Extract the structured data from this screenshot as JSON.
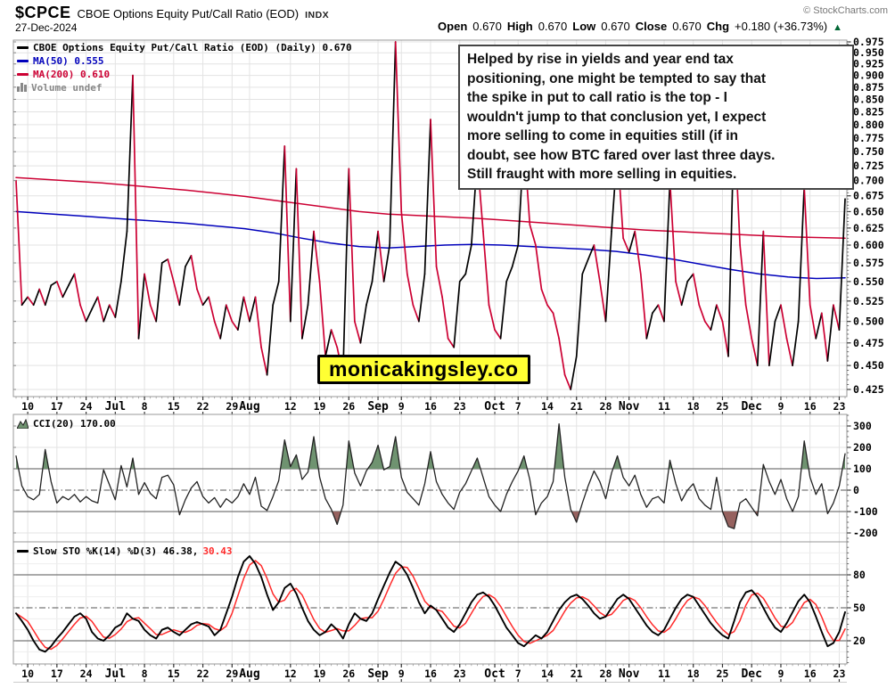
{
  "header": {
    "symbol": "$CPCE",
    "title": "CBOE Options Equity Put/Call Ratio (EOD)",
    "exchange": "INDX",
    "date": "27-Dec-2024",
    "copyright": "© StockCharts.com",
    "ohlc": {
      "open_label": "Open",
      "open": "0.670",
      "high_label": "High",
      "high": "0.670",
      "low_label": "Low",
      "low": "0.670",
      "close_label": "Close",
      "close": "0.670",
      "chg_label": "Chg",
      "chg": "+0.180 (+36.73%)",
      "chg_arrow": "▲",
      "chg_color": "#006633"
    }
  },
  "legends": {
    "main_price": "CBOE Options Equity Put/Call Ratio (EOD) (Daily) 0.670",
    "ma50": "MA(50) 0.555",
    "ma200": "MA(200) 0.610",
    "volume": "Volume undef",
    "cci": "CCI(20) 170.00",
    "sto_k": "Slow STO %K(14) %D(3) 46.38,",
    "sto_d": "30.43"
  },
  "annotation": {
    "text": "Helped by rise in yields and year end tax\npositioning, one might be tempted to say that\nthe spike in put to call ratio is the top - I\nwouldn't jump to that conclusion yet, I expect\nmore selling to come in equities still (if in\ndoubt, see how BTC fared over last three days.\nStill fraught with more selling in equities."
  },
  "watermark": {
    "text": "monicakingsley.co"
  },
  "colors": {
    "price_up": "#000000",
    "price_down": "#cc0033",
    "ma50": "#0000bb",
    "ma200": "#cc0033",
    "cci_line": "#222222",
    "cci_overbought_fill": "#6f9370",
    "cci_oversold_fill": "#96625f",
    "sto_k": "#000000",
    "sto_d": "#ff2a2a",
    "grid": "#e3e3e3",
    "panel_border": "#999999",
    "level_line": "#777777",
    "dashdot": "#555555",
    "axis_text": "#000000",
    "tick": "#555555",
    "watermark_bg": "#ffff33",
    "legend_volume": "#888888"
  },
  "chart_data": [
    {
      "type": "line",
      "panel": "price",
      "title": "CBOE Options Equity Put/Call Ratio (EOD) (Daily)",
      "scale": "log",
      "last_value": 0.67,
      "ylim": [
        0.4216,
        0.979
      ],
      "y_ticks": [
        0.975,
        0.95,
        0.925,
        0.9,
        0.875,
        0.85,
        0.825,
        0.8,
        0.775,
        0.75,
        0.725,
        0.7,
        0.675,
        0.65,
        0.625,
        0.6,
        0.575,
        0.55,
        0.525,
        0.5,
        0.475,
        0.45,
        0.425
      ],
      "x_tick_labels": [
        {
          "i": 2,
          "label": "10"
        },
        {
          "i": 7,
          "label": "17"
        },
        {
          "i": 12,
          "label": "24"
        },
        {
          "i": 17,
          "label": "Jul",
          "month": true
        },
        {
          "i": 22,
          "label": "8"
        },
        {
          "i": 27,
          "label": "15"
        },
        {
          "i": 32,
          "label": "22"
        },
        {
          "i": 37,
          "label": "29"
        },
        {
          "i": 40,
          "label": "Aug",
          "month": true
        },
        {
          "i": 47,
          "label": "12"
        },
        {
          "i": 52,
          "label": "19"
        },
        {
          "i": 57,
          "label": "26"
        },
        {
          "i": 62,
          "label": "Sep",
          "month": true
        },
        {
          "i": 66,
          "label": "9"
        },
        {
          "i": 71,
          "label": "16"
        },
        {
          "i": 76,
          "label": "23"
        },
        {
          "i": 82,
          "label": "Oct",
          "month": true
        },
        {
          "i": 86,
          "label": "7"
        },
        {
          "i": 91,
          "label": "14"
        },
        {
          "i": 96,
          "label": "21"
        },
        {
          "i": 101,
          "label": "28"
        },
        {
          "i": 105,
          "label": "Nov",
          "month": true
        },
        {
          "i": 111,
          "label": "11"
        },
        {
          "i": 116,
          "label": "18"
        },
        {
          "i": 121,
          "label": "25"
        },
        {
          "i": 126,
          "label": "Dec",
          "month": true
        },
        {
          "i": 131,
          "label": "9"
        },
        {
          "i": 136,
          "label": "16"
        },
        {
          "i": 141,
          "label": "23"
        }
      ],
      "series": [
        {
          "name": "CPCE close",
          "style": "direction-colored",
          "values": [
            0.7,
            0.52,
            0.53,
            0.52,
            0.54,
            0.52,
            0.545,
            0.55,
            0.53,
            0.545,
            0.56,
            0.52,
            0.5,
            0.515,
            0.53,
            0.5,
            0.52,
            0.505,
            0.55,
            0.62,
            0.9,
            0.48,
            0.56,
            0.52,
            0.5,
            0.575,
            0.58,
            0.55,
            0.52,
            0.57,
            0.585,
            0.54,
            0.52,
            0.53,
            0.5,
            0.48,
            0.52,
            0.5,
            0.49,
            0.53,
            0.5,
            0.53,
            0.47,
            0.44,
            0.52,
            0.55,
            0.76,
            0.5,
            0.72,
            0.48,
            0.52,
            0.62,
            0.55,
            0.46,
            0.49,
            0.47,
            0.44,
            0.72,
            0.5,
            0.475,
            0.52,
            0.55,
            0.62,
            0.55,
            0.6,
            0.975,
            0.65,
            0.56,
            0.52,
            0.5,
            0.56,
            0.81,
            0.57,
            0.53,
            0.48,
            0.47,
            0.55,
            0.56,
            0.6,
            0.74,
            0.62,
            0.52,
            0.49,
            0.48,
            0.55,
            0.57,
            0.6,
            0.77,
            0.63,
            0.6,
            0.54,
            0.52,
            0.51,
            0.48,
            0.44,
            0.425,
            0.46,
            0.56,
            0.58,
            0.6,
            0.55,
            0.5,
            0.62,
            0.755,
            0.61,
            0.59,
            0.62,
            0.56,
            0.48,
            0.51,
            0.52,
            0.5,
            0.7,
            0.55,
            0.52,
            0.55,
            0.56,
            0.52,
            0.5,
            0.49,
            0.52,
            0.5,
            0.46,
            0.81,
            0.6,
            0.52,
            0.48,
            0.45,
            0.62,
            0.45,
            0.5,
            0.52,
            0.48,
            0.45,
            0.5,
            0.69,
            0.52,
            0.48,
            0.51,
            0.455,
            0.52,
            0.49,
            0.67
          ]
        },
        {
          "name": "MA(50)",
          "last": 0.555,
          "values": [
            0.65,
            0.647,
            0.644,
            0.641,
            0.638,
            0.635,
            0.632,
            0.628,
            0.624,
            0.618,
            0.61,
            0.603,
            0.598,
            0.596,
            0.598,
            0.6,
            0.601,
            0.6,
            0.598,
            0.596,
            0.594,
            0.591,
            0.586,
            0.58,
            0.573,
            0.566,
            0.56,
            0.556,
            0.554,
            0.555
          ]
        },
        {
          "name": "MA(200)",
          "last": 0.61,
          "values": [
            0.705,
            0.702,
            0.699,
            0.696,
            0.692,
            0.688,
            0.684,
            0.679,
            0.674,
            0.668,
            0.662,
            0.656,
            0.65,
            0.646,
            0.644,
            0.642,
            0.64,
            0.637,
            0.634,
            0.631,
            0.628,
            0.625,
            0.622,
            0.62,
            0.618,
            0.616,
            0.614,
            0.612,
            0.611,
            0.61
          ]
        }
      ]
    },
    {
      "type": "line",
      "panel": "cci",
      "name": "CCI(20)",
      "last": 170.0,
      "ylim": [
        -242,
        354
      ],
      "y_ticks": [
        300,
        200,
        100,
        0,
        -100,
        -200
      ],
      "bands": {
        "upper": 100,
        "lower": -100,
        "zero": 0
      },
      "values": [
        160,
        20,
        -30,
        -45,
        -20,
        190,
        40,
        -60,
        -30,
        -45,
        -20,
        -55,
        -30,
        -50,
        -60,
        95,
        25,
        -45,
        115,
        15,
        150,
        -20,
        35,
        -15,
        -40,
        60,
        70,
        25,
        -115,
        -45,
        10,
        40,
        -30,
        -60,
        -35,
        -80,
        -40,
        -60,
        -30,
        30,
        -20,
        60,
        -75,
        -95,
        -30,
        45,
        235,
        110,
        165,
        50,
        85,
        250,
        60,
        -40,
        -90,
        -160,
        -70,
        230,
        80,
        20,
        90,
        130,
        210,
        95,
        110,
        250,
        60,
        -10,
        -40,
        -70,
        30,
        180,
        40,
        -20,
        -60,
        -90,
        -10,
        30,
        90,
        150,
        60,
        -30,
        -70,
        -100,
        -20,
        40,
        90,
        160,
        50,
        -115,
        -60,
        -30,
        40,
        310,
        60,
        -90,
        -150,
        -60,
        20,
        90,
        40,
        -40,
        80,
        160,
        60,
        20,
        70,
        -20,
        -80,
        -40,
        -30,
        -60,
        140,
        30,
        -50,
        0,
        30,
        -40,
        -70,
        -90,
        60,
        -100,
        -170,
        -180,
        -60,
        -40,
        -80,
        -120,
        120,
        40,
        -20,
        50,
        -40,
        -100,
        -30,
        230,
        60,
        -20,
        30,
        -110,
        -60,
        20,
        170
      ]
    },
    {
      "type": "line",
      "panel": "stochastic",
      "name": "Slow STO %K(14) %D(3)",
      "k_last": 46.38,
      "d_last": 30.43,
      "ylim": [
        -1,
        110
      ],
      "y_ticks": [
        80,
        50,
        20
      ],
      "bands": {
        "upper": 80,
        "mid": 50,
        "lower": 20
      },
      "k_values": [
        45,
        38,
        30,
        20,
        12,
        10,
        15,
        22,
        28,
        35,
        42,
        45,
        40,
        28,
        22,
        20,
        25,
        32,
        35,
        45,
        40,
        38,
        30,
        25,
        22,
        30,
        32,
        28,
        25,
        30,
        35,
        37,
        35,
        33,
        25,
        30,
        45,
        60,
        78,
        92,
        97,
        90,
        78,
        62,
        48,
        55,
        68,
        72,
        63,
        50,
        38,
        30,
        25,
        28,
        35,
        30,
        22,
        35,
        45,
        40,
        38,
        45,
        58,
        70,
        82,
        92,
        88,
        80,
        68,
        55,
        45,
        52,
        48,
        40,
        32,
        28,
        35,
        45,
        55,
        62,
        64,
        60,
        52,
        42,
        32,
        25,
        18,
        15,
        20,
        25,
        22,
        28,
        38,
        48,
        55,
        60,
        62,
        58,
        52,
        45,
        40,
        42,
        50,
        58,
        62,
        58,
        50,
        42,
        34,
        28,
        25,
        30,
        40,
        50,
        58,
        62,
        60,
        52,
        44,
        36,
        30,
        25,
        22,
        38,
        55,
        64,
        66,
        60,
        50,
        40,
        32,
        28,
        36,
        46,
        56,
        62,
        55,
        42,
        28,
        15,
        18,
        28,
        46
      ],
      "d_derivation": "3-period SMA of k_values"
    }
  ]
}
